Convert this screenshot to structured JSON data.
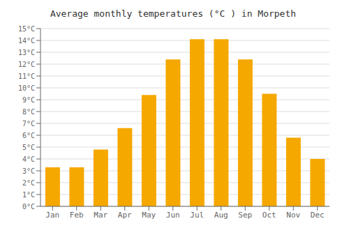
{
  "chart_data": {
    "type": "bar",
    "title": "Average monthly temperatures (°C ) in Morpeth",
    "categories": [
      "Jan",
      "Feb",
      "Mar",
      "Apr",
      "May",
      "Jun",
      "Jul",
      "Aug",
      "Sep",
      "Oct",
      "Nov",
      "Dec"
    ],
    "values": [
      3.3,
      3.3,
      4.8,
      6.6,
      9.4,
      12.4,
      14.1,
      14.1,
      12.4,
      9.5,
      5.8,
      4.0
    ],
    "color": "#F5A800",
    "ylim": [
      0,
      15
    ],
    "yticks": [
      {
        "value": 0,
        "label": "0°C"
      },
      {
        "value": 1,
        "label": "1°C"
      },
      {
        "value": 2,
        "label": "2°C"
      },
      {
        "value": 3,
        "label": "3°C"
      },
      {
        "value": 4,
        "label": "4°C"
      },
      {
        "value": 5,
        "label": "5°C"
      },
      {
        "value": 6,
        "label": "6°C"
      },
      {
        "value": 7,
        "label": "7°C"
      },
      {
        "value": 8,
        "label": "8°C"
      },
      {
        "value": 9,
        "label": "9°C"
      },
      {
        "value": 10,
        "label": "10°C"
      },
      {
        "value": 11,
        "label": "11°C"
      },
      {
        "value": 12,
        "label": "12°C"
      },
      {
        "value": 13,
        "label": "13°C"
      },
      {
        "value": 14,
        "label": "14°C"
      },
      {
        "value": 15,
        "label": "15°C"
      }
    ],
    "grid": true
  }
}
